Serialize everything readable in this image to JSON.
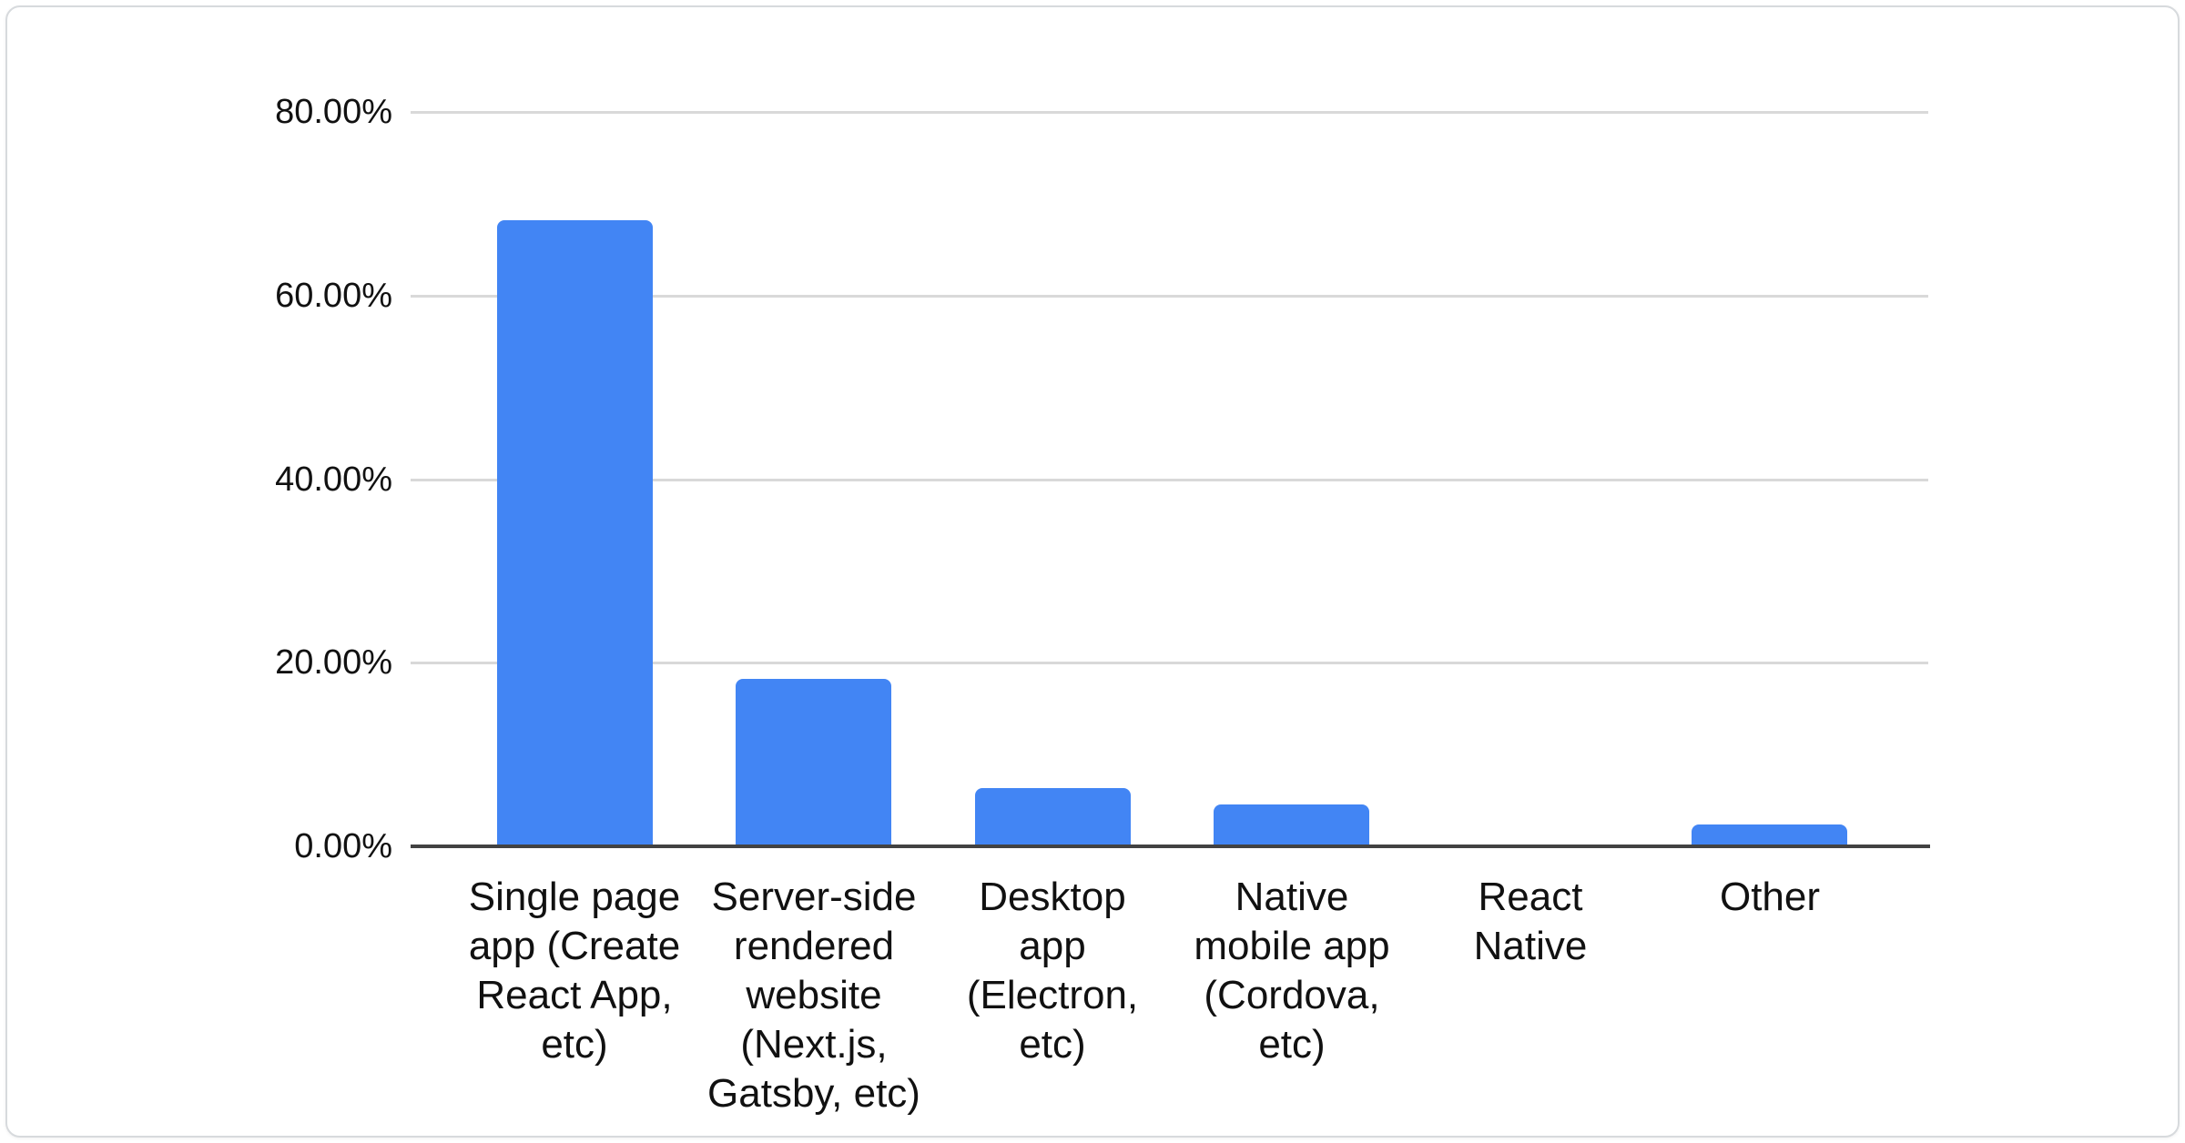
{
  "chart_data": {
    "type": "bar",
    "title": "",
    "xlabel": "",
    "ylabel": "",
    "categories": [
      "Single page app (Create React App, etc)",
      "Server-side rendered website (Next.js, Gatsby, etc)",
      "Desktop app (Electron, etc)",
      "Native mobile app (Cordova, etc)",
      "React Native",
      "Other"
    ],
    "category_lines": [
      [
        "Single page",
        "app (Create",
        "React App,",
        "etc)"
      ],
      [
        "Server-side",
        "rendered",
        "website",
        "(Next.js,",
        "Gatsby, etc)"
      ],
      [
        "Desktop",
        "app",
        "(Electron,",
        "etc)"
      ],
      [
        "Native",
        "mobile app",
        "(Cordova,",
        "etc)"
      ],
      [
        "React",
        "Native"
      ],
      [
        "Other"
      ]
    ],
    "values": [
      68.2,
      18.2,
      6.3,
      4.6,
      0.0,
      2.4
    ],
    "unit": "%",
    "y_ticks": [
      {
        "value": 80,
        "label": "80.00%"
      },
      {
        "value": 60,
        "label": "60.00%"
      },
      {
        "value": 40,
        "label": "40.00%"
      },
      {
        "value": 20,
        "label": "20.00%"
      },
      {
        "value": 0,
        "label": "0.00%"
      }
    ],
    "ylim": [
      0,
      80
    ],
    "grid": true,
    "legend": "none",
    "colors": {
      "bar": "#4285f4",
      "gridline": "#d9d9d9",
      "axis_line": "#424242",
      "text": "#111111",
      "card_border": "#d7dadd",
      "card_background": "#ffffff",
      "page_background": "#ffffff"
    }
  }
}
